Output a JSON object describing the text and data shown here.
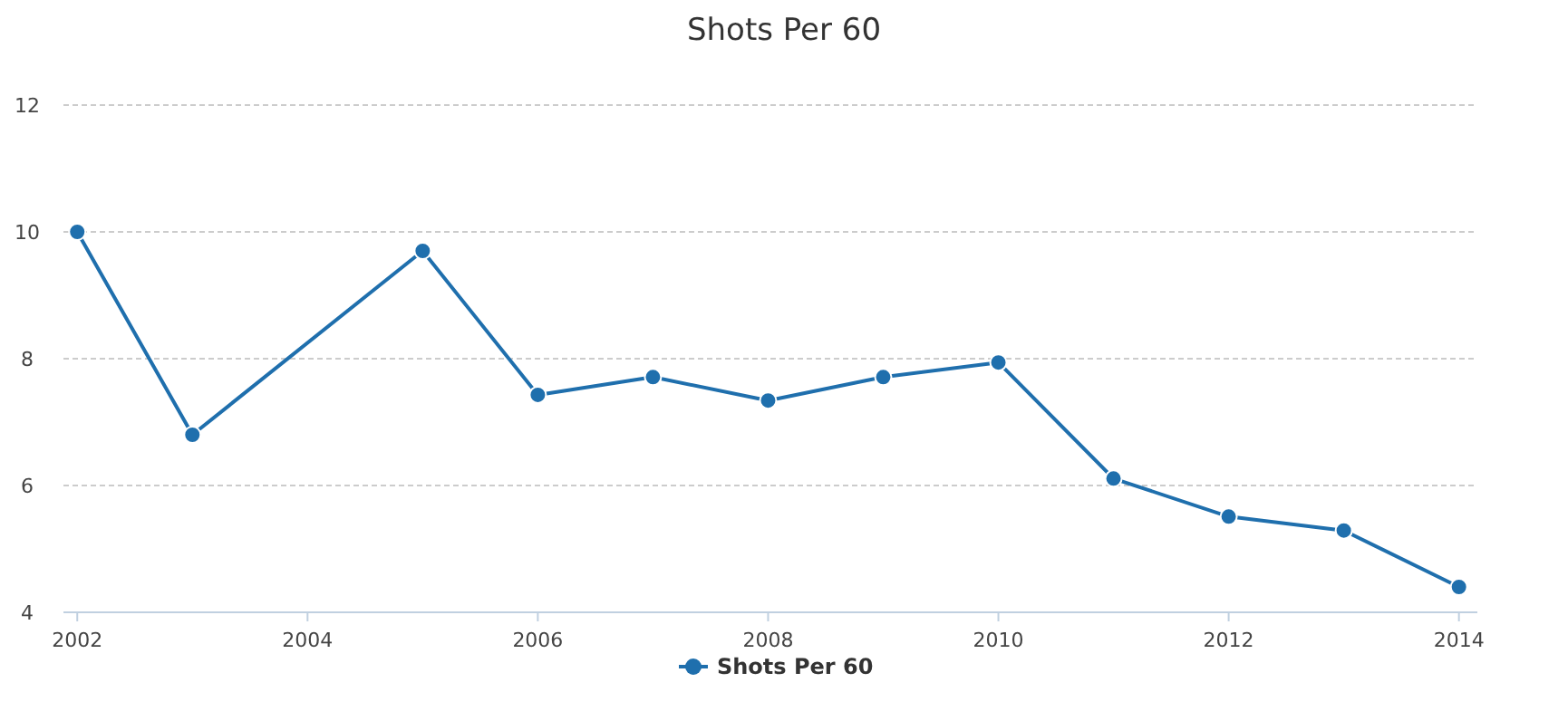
{
  "chart_data": {
    "type": "line",
    "title": "Shots Per 60",
    "x": [
      2002,
      2003,
      2005,
      2006,
      2007,
      2008,
      2009,
      2010,
      2011,
      2012,
      2013,
      2014
    ],
    "series": [
      {
        "name": "Shots Per 60",
        "color": "#1f6fad",
        "values": [
          10.0,
          6.8,
          9.7,
          7.43,
          7.71,
          7.34,
          7.71,
          7.94,
          6.11,
          5.51,
          5.29,
          4.4
        ]
      }
    ],
    "xlim": [
      2001.88,
      2014.16
    ],
    "xticks": [
      2002,
      2004,
      2006,
      2008,
      2010,
      2012,
      2014
    ],
    "ylim": [
      4,
      12
    ],
    "yticks": [
      4,
      6,
      8,
      10,
      12
    ],
    "grid": "y",
    "legend": "bottom",
    "marker": "circle",
    "line_style": "solid"
  }
}
